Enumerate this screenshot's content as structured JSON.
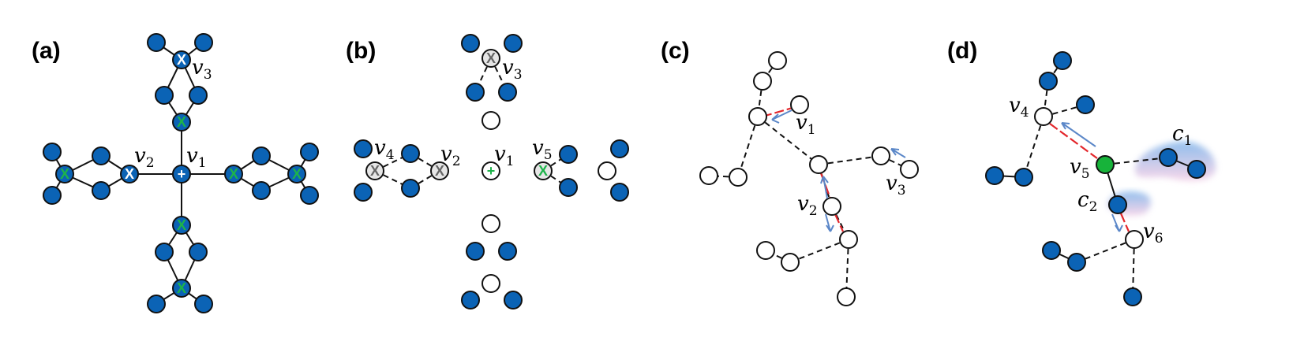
{
  "panels": {
    "a": {
      "label": "(a)",
      "v1": "v",
      "v1_sub": "1",
      "v2": "v",
      "v2_sub": "2",
      "v3": "v",
      "v3_sub": "3"
    },
    "b": {
      "label": "(b)",
      "v1": "v",
      "v1_sub": "1",
      "v2": "v",
      "v2_sub": "2",
      "v3": "v",
      "v3_sub": "3",
      "v4": "v",
      "v4_sub": "4",
      "v5": "v",
      "v5_sub": "5"
    },
    "c": {
      "label": "(c)",
      "v1": "v",
      "v1_sub": "1",
      "v2": "v",
      "v2_sub": "2",
      "v3": "v",
      "v3_sub": "3"
    },
    "d": {
      "label": "(d)",
      "v4": "v",
      "v4_sub": "4",
      "v5": "v",
      "v5_sub": "5",
      "v6": "v",
      "v6_sub": "6",
      "c1": "c",
      "c1_sub": "1",
      "c2": "c",
      "c2_sub": "2"
    }
  },
  "marks": {
    "plus": "+",
    "x": "X"
  },
  "colors": {
    "blue_node": "#0b63b5",
    "green_node": "#17b33a",
    "grey_node": "#e6e6e6",
    "red_edge": "#e3262b",
    "arrow": "#5b87c8",
    "mark_green": "#1db34a",
    "cloud_blue": "#6aa8e6",
    "cloud_pink": "#f5c9e3"
  }
}
